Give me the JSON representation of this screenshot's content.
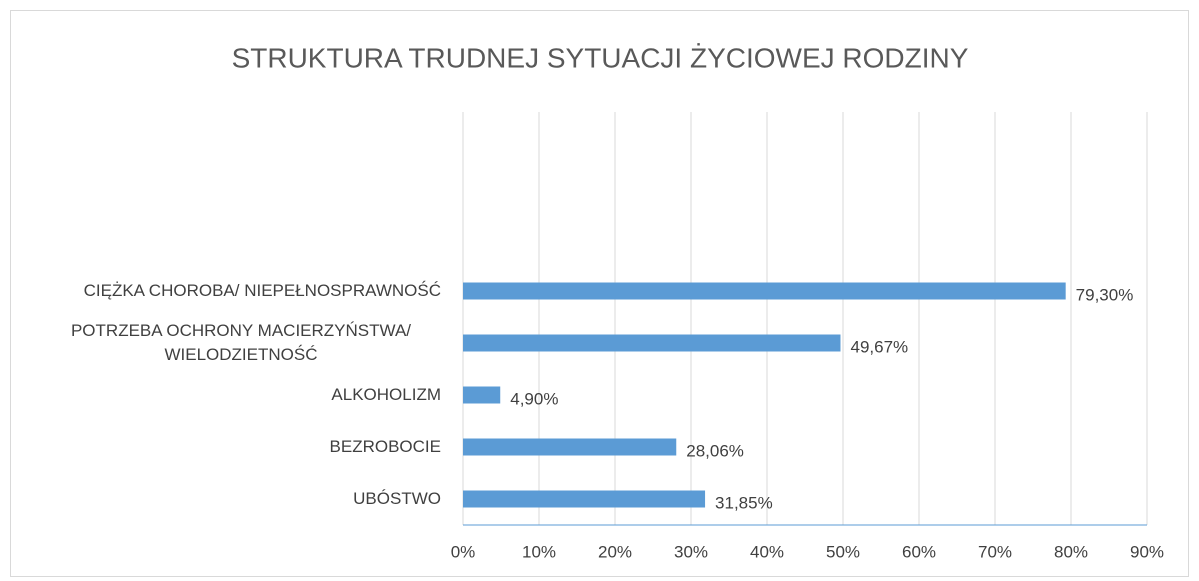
{
  "chart_data": {
    "type": "hbar",
    "title": "STRUKTURA TRUDNEJ SYTUACJI ŻYCIOWEJ RODZINY",
    "categories": [
      "CIĘŻKA CHOROBA/ NIEPEŁNOSPRAWNOŚĆ",
      "POTRZEBA OCHRONY MACIERZYŃSTWA/ WIELODZIETNOŚĆ",
      "ALKOHOLIZM",
      "BEZROBOCIE",
      "UBÓSTWO"
    ],
    "values": [
      79.3,
      49.67,
      4.9,
      28.06,
      31.85
    ],
    "value_labels": [
      "79,30%",
      "49,67%",
      "4,90%",
      "28,06%",
      "31,85%"
    ],
    "color": "#5b9bd5",
    "xlim": [
      0,
      90
    ],
    "xticks": [
      {
        "value": 0,
        "label": "0%"
      },
      {
        "value": 10,
        "label": "10%"
      },
      {
        "value": 20,
        "label": "20%"
      },
      {
        "value": 30,
        "label": "30%"
      },
      {
        "value": 40,
        "label": "40%"
      },
      {
        "value": 50,
        "label": "50%"
      },
      {
        "value": 60,
        "label": "60%"
      },
      {
        "value": 70,
        "label": "70%"
      },
      {
        "value": 80,
        "label": "80%"
      },
      {
        "value": 90,
        "label": "90%"
      }
    ],
    "grid": true
  }
}
